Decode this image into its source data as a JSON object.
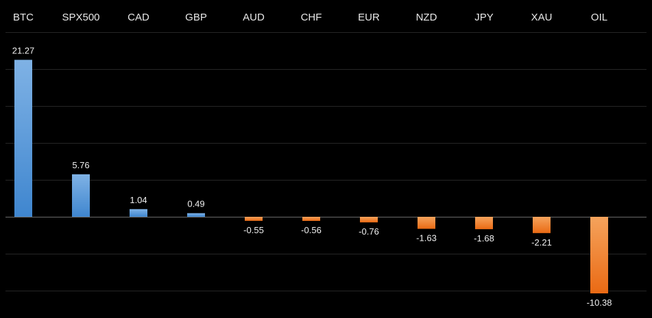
{
  "chart_data": {
    "type": "bar",
    "title": "",
    "xlabel": "",
    "ylabel": "",
    "categories": [
      "BTC",
      "SPX500",
      "CAD",
      "GBP",
      "AUD",
      "CHF",
      "EUR",
      "NZD",
      "JPY",
      "XAU",
      "OIL"
    ],
    "values": [
      21.27,
      5.76,
      1.04,
      0.49,
      -0.55,
      -0.56,
      -0.76,
      -1.63,
      -1.68,
      -2.21,
      -10.38
    ],
    "value_labels": [
      "21.27",
      "5.76",
      "1.04",
      "0.49",
      "-0.55",
      "-0.56",
      "-0.76",
      "-1.63",
      "-1.68",
      "-2.21",
      "-10.38"
    ],
    "ylim": [
      -10.5,
      25
    ],
    "gridline_step": 5,
    "grid": true,
    "legend": "none",
    "category_axis_position": "top",
    "colors": {
      "background": "#000000",
      "positive_bar_top": "#7fb2e5",
      "positive_bar_bottom": "#3f86cf",
      "negative_bar_top": "#f5a35c",
      "negative_bar_bottom": "#ea6a14",
      "grid": "#262626",
      "zero_line": "#6b6b6b",
      "text": "#e8e8e8"
    }
  }
}
